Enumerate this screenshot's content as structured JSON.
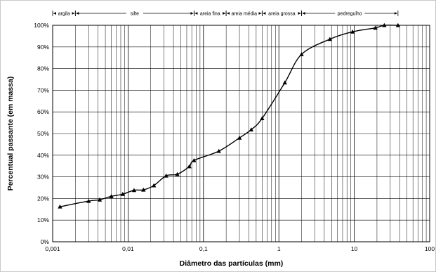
{
  "chart_data": {
    "type": "line",
    "xscale": "log",
    "xlim": [
      0.001,
      100
    ],
    "ylim": [
      0,
      100
    ],
    "xlabel": "Diâmetro das partículas (mm)",
    "ylabel": "Percentual passante (em massa)",
    "x_ticks": [
      "0,001",
      "0,01",
      "0,1",
      "1",
      "10",
      "100"
    ],
    "x_tick_values": [
      0.001,
      0.01,
      0.1,
      1,
      10,
      100
    ],
    "y_ticks": [
      "0%",
      "10%",
      "20%",
      "30%",
      "40%",
      "50%",
      "60%",
      "70%",
      "80%",
      "90%",
      "100%"
    ],
    "y_tick_values": [
      0,
      10,
      20,
      30,
      40,
      50,
      60,
      70,
      80,
      90,
      100
    ],
    "grid": true,
    "marker": "triangle",
    "line_color": "#000000",
    "series": [
      {
        "x": [
          0.00125,
          0.003,
          0.0042,
          0.006,
          0.0085,
          0.012,
          0.016,
          0.022,
          0.032,
          0.045,
          0.065,
          0.075,
          0.16,
          0.3,
          0.43,
          0.6,
          1.2,
          2.0,
          4.75,
          9.5,
          19,
          25,
          38
        ],
        "y": [
          16.2,
          18.8,
          19.4,
          21.0,
          22.0,
          23.8,
          24.0,
          26.0,
          30.5,
          31.2,
          34.8,
          37.6,
          41.9,
          48.0,
          51.8,
          57.0,
          73.5,
          86.6,
          93.6,
          97.0,
          98.8,
          100,
          100
        ]
      }
    ],
    "size_bands": [
      {
        "label": "argila",
        "from": 0.001,
        "to": 0.002
      },
      {
        "label": "silte",
        "from": 0.002,
        "to": 0.075
      },
      {
        "label": "areia fina",
        "from": 0.075,
        "to": 0.2
      },
      {
        "label": "areia média",
        "from": 0.2,
        "to": 0.6
      },
      {
        "label": "areia grossa",
        "from": 0.6,
        "to": 2.0
      },
      {
        "label": "pedregulho",
        "from": 2.0,
        "to": 38
      }
    ]
  }
}
